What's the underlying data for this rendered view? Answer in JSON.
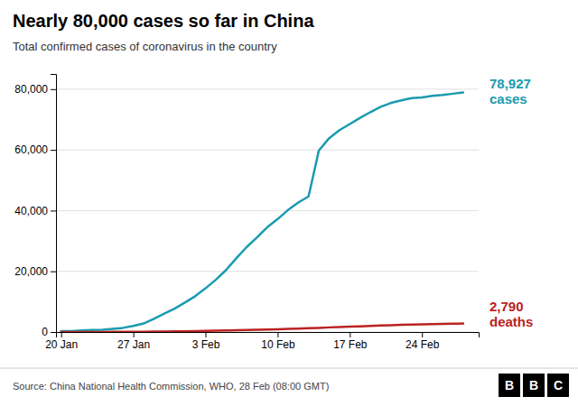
{
  "chart_data": {
    "type": "line",
    "title": "Nearly 80,000 cases so far in China",
    "subtitle": "Total confirmed cases of coronavirus in the country",
    "source": "Source: China National Health Commission, WHO, 28 Feb (08:00 GMT)",
    "logo": [
      "B",
      "B",
      "C"
    ],
    "x": [
      0,
      1,
      2,
      3,
      4,
      5,
      6,
      7,
      8,
      9,
      10,
      11,
      12,
      13,
      14,
      15,
      16,
      17,
      18,
      19,
      20,
      21,
      22,
      23,
      24,
      25,
      26,
      27,
      28,
      29,
      30,
      31,
      32,
      33,
      34,
      35,
      36,
      37,
      38,
      39
    ],
    "xlim": [
      -0.5,
      40.5
    ],
    "xticks": [
      {
        "value": 0,
        "label": "20 Jan"
      },
      {
        "value": 7,
        "label": "27 Jan"
      },
      {
        "value": 14,
        "label": "3 Feb"
      },
      {
        "value": 21,
        "label": "10 Feb"
      },
      {
        "value": 28,
        "label": "17 Feb"
      },
      {
        "value": 35,
        "label": "24 Feb"
      }
    ],
    "ylim": [
      0,
      85000
    ],
    "yticks": [
      0,
      {
        "value": 20000,
        "label": "20,000"
      },
      {
        "value": 40000,
        "label": "40,000"
      },
      {
        "value": 60000,
        "label": "60,000"
      },
      {
        "value": 80000,
        "label": "80,000"
      }
    ],
    "grid": true,
    "series": [
      {
        "color": "#1a9baf",
        "annotation": [
          "78,927",
          "cases"
        ],
        "values": [
          278,
          326,
          547,
          639,
          774,
          1040,
          1372,
          2014,
          2798,
          4340,
          6065,
          7711,
          9692,
          11791,
          14380,
          17205,
          20438,
          24324,
          28018,
          31161,
          34546,
          37198,
          40171,
          42638,
          44653,
          59804,
          63851,
          66492,
          68500,
          70548,
          72436,
          74185,
          75465,
          76288,
          77042,
          77262,
          77780,
          78064,
          78497,
          78927
        ]
      },
      {
        "color": "#bb2222",
        "annotation": [
          "2,790",
          "deaths"
        ],
        "values": [
          6,
          9,
          17,
          18,
          26,
          42,
          56,
          80,
          107,
          132,
          170,
          213,
          259,
          304,
          361,
          425,
          491,
          563,
          638,
          724,
          813,
          908,
          1016,
          1113,
          1261,
          1367,
          1523,
          1666,
          1770,
          1868,
          2004,
          2118,
          2239,
          2345,
          2442,
          2523,
          2592,
          2663,
          2715,
          2790
        ]
      }
    ]
  }
}
